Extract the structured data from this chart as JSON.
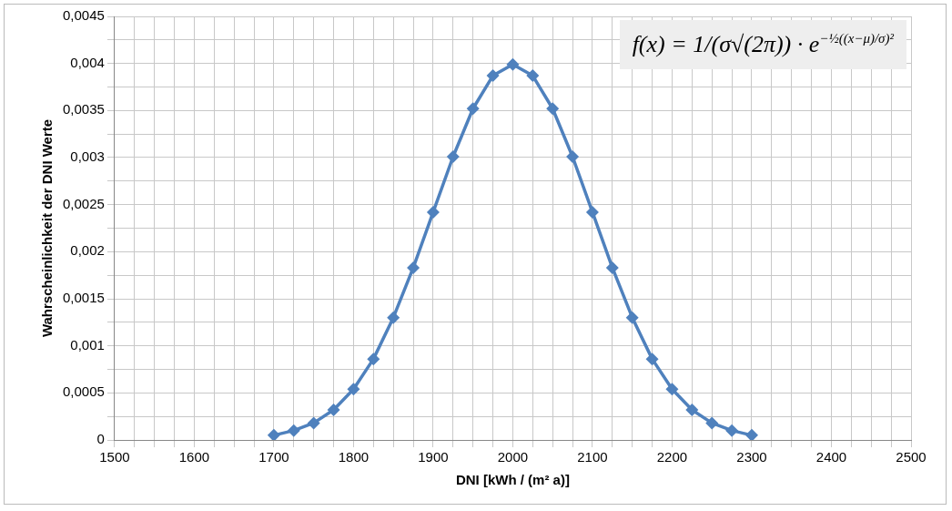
{
  "chart_data": {
    "type": "line",
    "xlabel": "DNI [kWh / (m² a)]",
    "ylabel": "Wahrscheinlichkeit der DNI Werte",
    "annotations": [
      "f(x) = 1/(σ√(2π)) · e$^{−½((x−μ)/σ)²}$"
    ],
    "x": [
      1700,
      1725,
      1750,
      1775,
      1800,
      1825,
      1850,
      1875,
      1900,
      1925,
      1950,
      1975,
      2000,
      2025,
      2050,
      2075,
      2100,
      2125,
      2150,
      2175,
      2200,
      2225,
      2250,
      2275,
      2300
    ],
    "series": [
      {
        "color": "#4f81bd",
        "values": [
          5e-05,
          0.0001,
          0.00018,
          0.00032,
          0.00054,
          0.00086,
          0.0013,
          0.00183,
          0.00242,
          0.00301,
          0.00352,
          0.00387,
          0.00399,
          0.00387,
          0.00352,
          0.00301,
          0.00242,
          0.00183,
          0.0013,
          0.00086,
          0.00054,
          0.00032,
          0.00018,
          0.0001,
          5e-05
        ]
      }
    ],
    "xlim": [
      1500,
      2500
    ],
    "xticks": [
      1500,
      {
        "value": 1525,
        "label": null
      },
      {
        "value": 1550,
        "label": null
      },
      {
        "value": 1575,
        "label": null
      },
      1600,
      {
        "value": 1625,
        "label": null
      },
      {
        "value": 1650,
        "label": null
      },
      {
        "value": 1675,
        "label": null
      },
      1700,
      {
        "value": 1725,
        "label": null
      },
      {
        "value": 1750,
        "label": null
      },
      {
        "value": 1775,
        "label": null
      },
      1800,
      {
        "value": 1825,
        "label": null
      },
      {
        "value": 1850,
        "label": null
      },
      {
        "value": 1875,
        "label": null
      },
      1900,
      {
        "value": 1925,
        "label": null
      },
      {
        "value": 1950,
        "label": null
      },
      {
        "value": 1975,
        "label": null
      },
      2000,
      {
        "value": 2025,
        "label": null
      },
      {
        "value": 2050,
        "label": null
      },
      {
        "value": 2075,
        "label": null
      },
      2100,
      {
        "value": 2125,
        "label": null
      },
      {
        "value": 2150,
        "label": null
      },
      {
        "value": 2175,
        "label": null
      },
      2200,
      {
        "value": 2225,
        "label": null
      },
      {
        "value": 2250,
        "label": null
      },
      {
        "value": 2275,
        "label": null
      },
      2300,
      {
        "value": 2325,
        "label": null
      },
      {
        "value": 2350,
        "label": null
      },
      {
        "value": 2375,
        "label": null
      },
      2400,
      {
        "value": 2425,
        "label": null
      },
      {
        "value": 2450,
        "label": null
      },
      {
        "value": 2475,
        "label": null
      },
      2500
    ],
    "ylim": [
      0,
      0.0045
    ],
    "yticks": [
      0,
      {
        "value": 0.00025,
        "label": null
      },
      {
        "value": 0.0005,
        "label": "0,0005"
      },
      {
        "value": 0.00075,
        "label": null
      },
      {
        "value": 0.001,
        "label": "0,001"
      },
      {
        "value": 0.00125,
        "label": null
      },
      {
        "value": 0.0015,
        "label": "0,0015"
      },
      {
        "value": 0.00175,
        "label": null
      },
      {
        "value": 0.002,
        "label": "0,002"
      },
      {
        "value": 0.00225,
        "label": null
      },
      {
        "value": 0.0025,
        "label": "0,0025"
      },
      {
        "value": 0.00275,
        "label": null
      },
      {
        "value": 0.003,
        "label": "0,003"
      },
      {
        "value": 0.00325,
        "label": null
      },
      {
        "value": 0.0035,
        "label": "0,0035"
      },
      {
        "value": 0.00375,
        "label": null
      },
      {
        "value": 0.004,
        "label": "0,004"
      },
      {
        "value": 0.00425,
        "label": null
      },
      {
        "value": 0.0045,
        "label": "0,0045"
      }
    ],
    "grid": true,
    "legend": false,
    "marker": "diamond",
    "line_style": "solid"
  }
}
